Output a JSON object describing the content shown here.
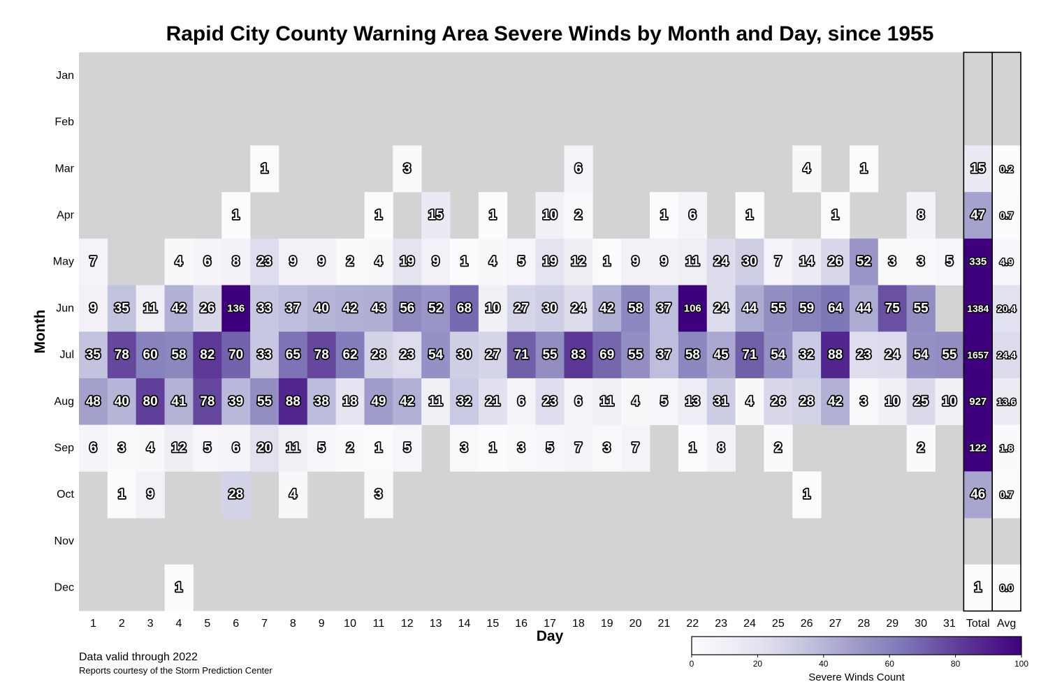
{
  "chart_data": {
    "type": "heatmap",
    "title": "Rapid City County Warning Area Severe Winds by Month and Day, since 1955",
    "xlabel": "Day",
    "ylabel": "Month",
    "months": [
      "Jan",
      "Feb",
      "Mar",
      "Apr",
      "May",
      "Jun",
      "Jul",
      "Aug",
      "Sep",
      "Oct",
      "Nov",
      "Dec"
    ],
    "days": [
      "1",
      "2",
      "3",
      "4",
      "5",
      "6",
      "7",
      "8",
      "9",
      "10",
      "11",
      "12",
      "13",
      "14",
      "15",
      "16",
      "17",
      "18",
      "19",
      "20",
      "21",
      "22",
      "23",
      "24",
      "25",
      "26",
      "27",
      "28",
      "29",
      "30",
      "31"
    ],
    "values": [
      [
        null,
        null,
        null,
        null,
        null,
        null,
        null,
        null,
        null,
        null,
        null,
        null,
        null,
        null,
        null,
        null,
        null,
        null,
        null,
        null,
        null,
        null,
        null,
        null,
        null,
        null,
        null,
        null,
        null,
        null,
        null
      ],
      [
        null,
        null,
        null,
        null,
        null,
        null,
        null,
        null,
        null,
        null,
        null,
        null,
        null,
        null,
        null,
        null,
        null,
        null,
        null,
        null,
        null,
        null,
        null,
        null,
        null,
        null,
        null,
        null,
        null,
        null,
        null
      ],
      [
        null,
        null,
        null,
        null,
        null,
        null,
        1,
        null,
        null,
        null,
        null,
        3,
        null,
        null,
        null,
        null,
        null,
        6,
        null,
        null,
        null,
        null,
        null,
        null,
        null,
        4,
        null,
        1,
        null,
        null,
        null
      ],
      [
        null,
        null,
        null,
        null,
        null,
        1,
        null,
        null,
        null,
        null,
        1,
        null,
        15,
        null,
        1,
        null,
        10,
        2,
        null,
        null,
        1,
        6,
        null,
        1,
        null,
        null,
        1,
        null,
        null,
        8,
        null
      ],
      [
        7,
        null,
        null,
        4,
        6,
        8,
        23,
        9,
        9,
        2,
        4,
        19,
        9,
        1,
        4,
        5,
        19,
        12,
        1,
        9,
        9,
        11,
        24,
        30,
        7,
        14,
        26,
        52,
        3,
        3,
        5
      ],
      [
        9,
        35,
        11,
        42,
        26,
        136,
        33,
        37,
        40,
        42,
        43,
        56,
        52,
        68,
        10,
        27,
        30,
        24,
        42,
        58,
        37,
        106,
        24,
        44,
        55,
        59,
        64,
        44,
        75,
        55,
        null
      ],
      [
        35,
        78,
        60,
        58,
        82,
        70,
        33,
        65,
        78,
        62,
        28,
        23,
        54,
        30,
        27,
        71,
        55,
        83,
        69,
        55,
        37,
        58,
        45,
        71,
        54,
        32,
        88,
        23,
        24,
        54,
        55
      ],
      [
        48,
        40,
        80,
        41,
        78,
        39,
        55,
        88,
        38,
        18,
        49,
        42,
        11,
        32,
        21,
        6,
        23,
        6,
        11,
        4,
        5,
        13,
        31,
        4,
        26,
        28,
        42,
        3,
        10,
        25,
        10
      ],
      [
        6,
        3,
        4,
        12,
        5,
        6,
        20,
        11,
        5,
        2,
        1,
        5,
        null,
        3,
        1,
        3,
        5,
        7,
        3,
        7,
        null,
        1,
        8,
        null,
        2,
        null,
        null,
        null,
        null,
        2,
        null
      ],
      [
        null,
        1,
        9,
        null,
        null,
        28,
        null,
        4,
        null,
        null,
        3,
        null,
        null,
        null,
        null,
        null,
        null,
        null,
        null,
        null,
        null,
        null,
        null,
        null,
        null,
        1,
        null,
        null,
        null,
        null,
        null
      ],
      [
        null,
        null,
        null,
        null,
        null,
        null,
        null,
        null,
        null,
        null,
        null,
        null,
        null,
        null,
        null,
        null,
        null,
        null,
        null,
        null,
        null,
        null,
        null,
        null,
        null,
        null,
        null,
        null,
        null,
        null,
        null
      ],
      [
        null,
        null,
        null,
        1,
        null,
        null,
        null,
        null,
        null,
        null,
        null,
        null,
        null,
        null,
        null,
        null,
        null,
        null,
        null,
        null,
        null,
        null,
        null,
        null,
        null,
        null,
        null,
        null,
        null,
        null,
        null
      ]
    ],
    "total_label": "Total",
    "avg_label": "Avg",
    "totals": [
      null,
      null,
      15,
      47,
      335,
      1384,
      1657,
      927,
      122,
      46,
      null,
      1
    ],
    "averages": [
      null,
      null,
      "0.2",
      "0.7",
      "4.9",
      "20.4",
      "24.4",
      "13.6",
      "1.8",
      "0.7",
      null,
      "0.0"
    ],
    "colorbar": {
      "label": "Severe Winds Count",
      "min": 0,
      "max": 100,
      "ticks": [
        "0",
        "20",
        "40",
        "60",
        "80",
        "100"
      ],
      "colormap": "Purples",
      "colors": [
        "#fcfbfd",
        "#efedf5",
        "#dadaeb",
        "#bcbddc",
        "#9e9ac8",
        "#807dba",
        "#6a51a3",
        "#54278f",
        "#3f007d"
      ]
    },
    "missing_color": "#d3d3d3"
  },
  "footer": {
    "valid_note": "Data valid through 2022",
    "credit": "Reports courtesy of the Storm Prediction Center"
  }
}
